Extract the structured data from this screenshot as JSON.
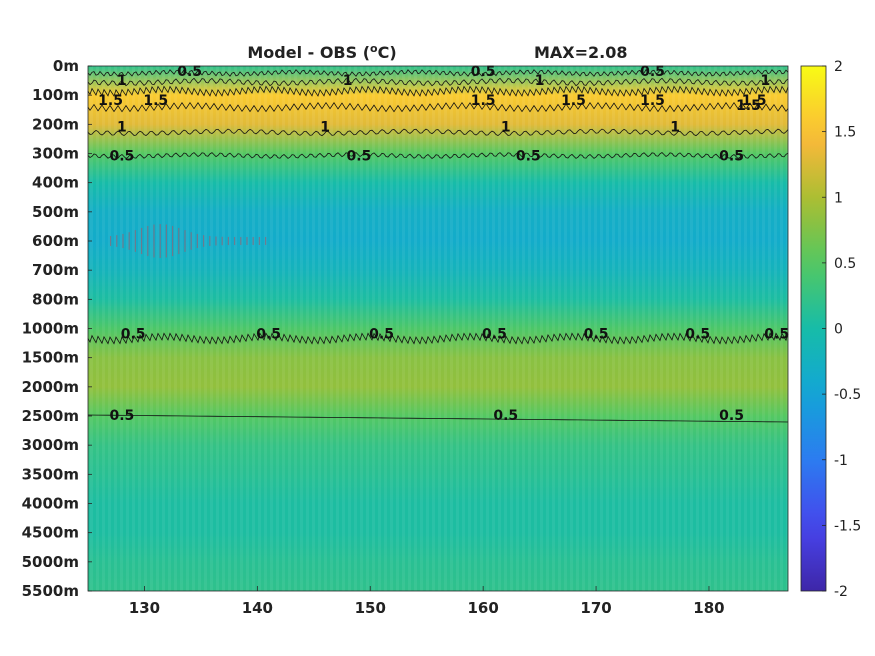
{
  "chart_data": {
    "type": "heatmap",
    "title": "Model - OBS (",
    "title_unit_sup": "o",
    "title_unit_suffix": "C)",
    "max_label": "MAX=2.08",
    "colormap": "parula",
    "xlabel": "",
    "ylabel": "",
    "x_ticks": [
      130,
      140,
      150,
      160,
      170,
      180
    ],
    "x_range": [
      125,
      187
    ],
    "y_tick_labels": [
      "0m",
      "100m",
      "200m",
      "300m",
      "400m",
      "500m",
      "600m",
      "700m",
      "800m",
      "1000m",
      "1500m",
      "2000m",
      "2500m",
      "3000m",
      "3500m",
      "4000m",
      "4500m",
      "5000m",
      "5500m"
    ],
    "colorbar": {
      "range": [
        -2,
        2
      ],
      "tick_values": [
        -2,
        -1.5,
        -1,
        -0.5,
        0,
        0.5,
        1,
        1.5,
        2
      ],
      "tick_labels": [
        "-2",
        "-1.5",
        "-1",
        "-0.5",
        "0",
        "0.5",
        "1",
        "1.5",
        "2"
      ]
    },
    "depth_profile": [
      {
        "depth": "0m",
        "value": 0.2
      },
      {
        "depth": "100m",
        "value": 1.6
      },
      {
        "depth": "200m",
        "value": 1.3
      },
      {
        "depth": "300m",
        "value": 0.5
      },
      {
        "depth": "400m",
        "value": 0.0
      },
      {
        "depth": "500m",
        "value": -0.3
      },
      {
        "depth": "600m",
        "value": -0.35
      },
      {
        "depth": "700m",
        "value": -0.2
      },
      {
        "depth": "800m",
        "value": 0.05
      },
      {
        "depth": "1000m",
        "value": 0.45
      },
      {
        "depth": "1500m",
        "value": 0.8
      },
      {
        "depth": "2000m",
        "value": 0.85
      },
      {
        "depth": "2500m",
        "value": 0.5
      },
      {
        "depth": "3000m",
        "value": 0.25
      },
      {
        "depth": "3500m",
        "value": 0.15
      },
      {
        "depth": "4000m",
        "value": 0.05
      },
      {
        "depth": "4500m",
        "value": 0.05
      },
      {
        "depth": "5000m",
        "value": 0.15
      },
      {
        "depth": "5500m",
        "value": 0.2
      }
    ],
    "contour_labels": [
      {
        "text": "1",
        "x": 128.0,
        "depth": "100m"
      },
      {
        "text": "0.5",
        "x": 134.0,
        "depth": "0m"
      },
      {
        "text": "1",
        "x": 148.0,
        "depth": "100m"
      },
      {
        "text": "0.5",
        "x": 160.0,
        "depth": "0m"
      },
      {
        "text": "1",
        "x": 165.0,
        "depth": "100m"
      },
      {
        "text": "0.5",
        "x": 175.0,
        "depth": "0m"
      },
      {
        "text": "1",
        "x": 185.0,
        "depth": "100m"
      },
      {
        "text": "1.5",
        "x": 127.0,
        "depth": "100m"
      },
      {
        "text": "1.5",
        "x": 131.0,
        "depth": "100m"
      },
      {
        "text": "1.5",
        "x": 160.0,
        "depth": "100m"
      },
      {
        "text": "1.5",
        "x": 168.0,
        "depth": "100m"
      },
      {
        "text": "1.5",
        "x": 175.0,
        "depth": "100m"
      },
      {
        "text": "1.5",
        "x": 184.0,
        "depth": "100m"
      },
      {
        "text": "1.5",
        "x": 183.5,
        "depth": "100m"
      },
      {
        "text": "1",
        "x": 128.0,
        "depth": "200m"
      },
      {
        "text": "1",
        "x": 146.0,
        "depth": "200m"
      },
      {
        "text": "1",
        "x": 162.0,
        "depth": "200m"
      },
      {
        "text": "1",
        "x": 177.0,
        "depth": "200m"
      },
      {
        "text": "0.5",
        "x": 128.0,
        "depth": "300m"
      },
      {
        "text": "0.5",
        "x": 149.0,
        "depth": "300m"
      },
      {
        "text": "0.5",
        "x": 164.0,
        "depth": "300m"
      },
      {
        "text": "0.5",
        "x": 182.0,
        "depth": "300m"
      },
      {
        "text": "0.5",
        "x": 129.0,
        "depth": "1000m"
      },
      {
        "text": "0.5",
        "x": 141.0,
        "depth": "1000m"
      },
      {
        "text": "0.5",
        "x": 151.0,
        "depth": "1000m"
      },
      {
        "text": "0.5",
        "x": 161.0,
        "depth": "1000m"
      },
      {
        "text": "0.5",
        "x": 170.0,
        "depth": "1000m"
      },
      {
        "text": "0.5",
        "x": 179.0,
        "depth": "1000m"
      },
      {
        "text": "0.5",
        "x": 186.0,
        "depth": "1000m"
      },
      {
        "text": "0.5",
        "x": 128.0,
        "depth": "2500m"
      },
      {
        "text": "0.5",
        "x": 162.0,
        "depth": "2500m"
      },
      {
        "text": "0.5",
        "x": 182.0,
        "depth": "2500m"
      }
    ]
  }
}
